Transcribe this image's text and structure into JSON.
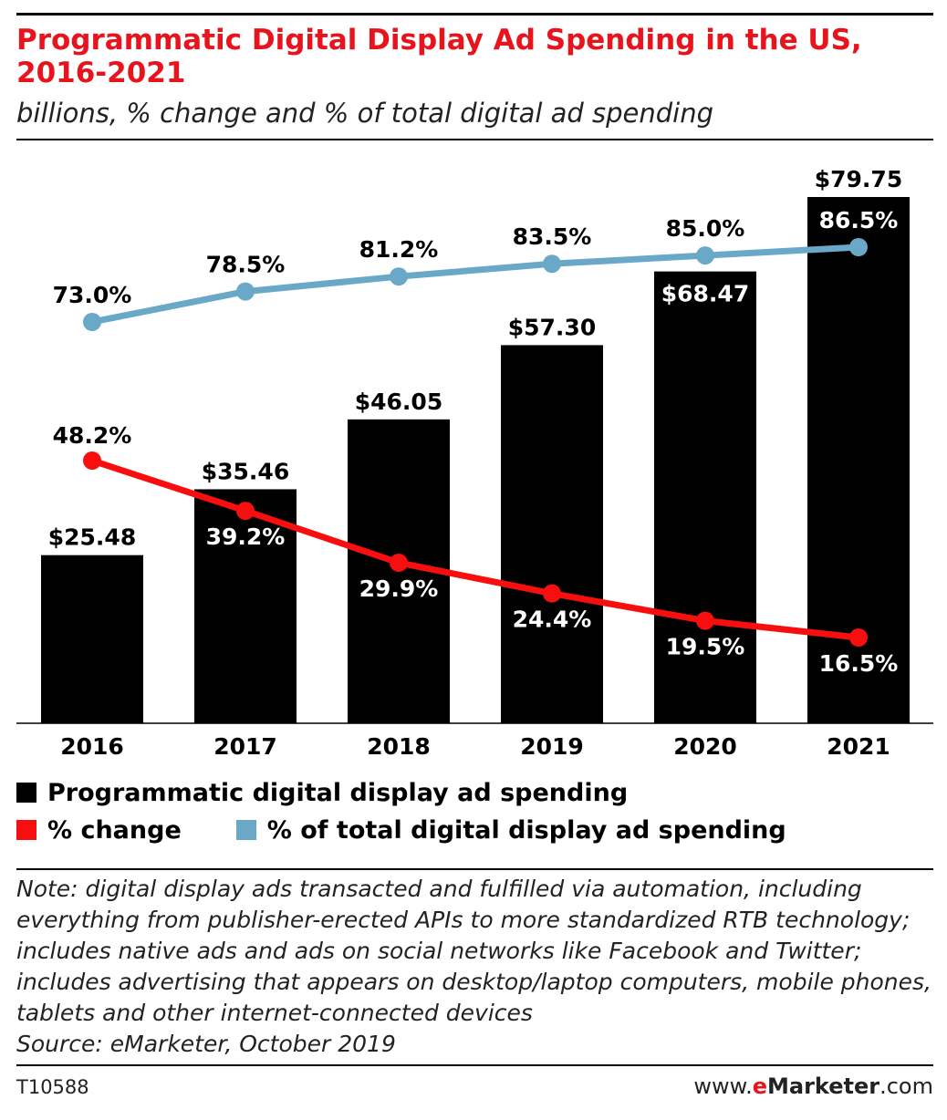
{
  "header": {
    "title": "Programmatic Digital Display Ad Spending in the US, 2016-2021",
    "subtitle": "billions, % change and % of total digital ad spending"
  },
  "colors": {
    "title": "#e8141d",
    "bar": "#000000",
    "change_line": "#f70f0f",
    "share_line": "#6aa8c8"
  },
  "chart_data": {
    "type": "bar",
    "categories": [
      "2016",
      "2017",
      "2018",
      "2019",
      "2020",
      "2021"
    ],
    "series": [
      {
        "name": "Programmatic digital display ad spending",
        "type": "bar",
        "values": [
          25.48,
          35.46,
          46.05,
          57.3,
          68.47,
          79.75
        ],
        "labels": [
          "$25.48",
          "$35.46",
          "$46.05",
          "$57.30",
          "$68.47",
          "$79.75"
        ]
      },
      {
        "name": "% change",
        "type": "line",
        "values": [
          48.2,
          39.2,
          29.9,
          24.4,
          19.5,
          16.5
        ],
        "labels": [
          "48.2%",
          "39.2%",
          "29.9%",
          "24.4%",
          "19.5%",
          "16.5%"
        ]
      },
      {
        "name": "% of total digital display ad spending",
        "type": "line",
        "values": [
          73.0,
          78.5,
          81.2,
          83.5,
          85.0,
          86.5
        ],
        "labels": [
          "73.0%",
          "78.5%",
          "81.2%",
          "83.5%",
          "85.0%",
          "86.5%"
        ]
      }
    ],
    "legend_position": "bottom",
    "grid": false
  },
  "legend": {
    "bars": "Programmatic digital display ad spending",
    "change": "% change",
    "share": "% of total digital display ad spending"
  },
  "footer": {
    "note": "Note: digital display ads transacted and fulfilled via automation, including everything from publisher-erected APIs to more standardized RTB technology; includes native ads and ads on social networks like Facebook and Twitter; includes advertising that appears on desktop/laptop computers, mobile phones, tablets and other internet-connected devices",
    "source": "Source: eMarketer, October 2019",
    "chart_id": "T10588",
    "brand_prefix": "www.",
    "brand_e": "e",
    "brand_name": "Marketer",
    "brand_suffix": ".com"
  }
}
